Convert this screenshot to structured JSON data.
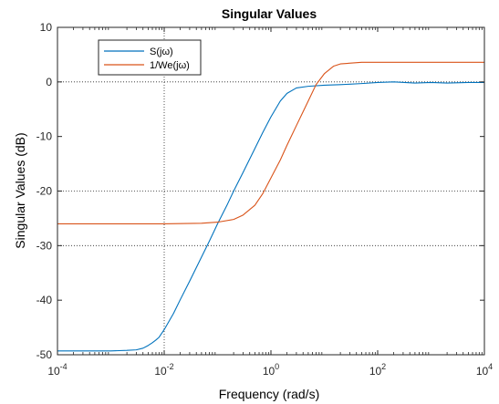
{
  "chart_data": {
    "type": "line",
    "title": "Singular Values",
    "xlabel": "Frequency (rad/s)",
    "ylabel": "Singular Values (dB)",
    "xscale": "log",
    "xlim": [
      0.0001,
      10000
    ],
    "ylim": [
      -50,
      10
    ],
    "xticks": [
      {
        "value": 0.0001,
        "base": "10",
        "exp": "-4"
      },
      {
        "value": 0.01,
        "base": "10",
        "exp": "-2"
      },
      {
        "value": 1,
        "base": "10",
        "exp": "0"
      },
      {
        "value": 100,
        "base": "10",
        "exp": "2"
      },
      {
        "value": 10000,
        "base": "10",
        "exp": "4"
      }
    ],
    "yticks": [
      "10",
      "0",
      "-10",
      "-20",
      "-30",
      "-40",
      "-50"
    ],
    "grid_lines": {
      "x": [
        0.01
      ],
      "y": [
        0,
        -20,
        -30
      ]
    },
    "legend": {
      "placement": "top-left"
    },
    "series": [
      {
        "name": "S(jω)",
        "color": "#0072BD",
        "points": [
          [
            0.0001,
            -49.3
          ],
          [
            0.001,
            -49.3
          ],
          [
            0.002,
            -49.2
          ],
          [
            0.003,
            -49.1
          ],
          [
            0.004,
            -48.8
          ],
          [
            0.005,
            -48.3
          ],
          [
            0.006,
            -47.8
          ],
          [
            0.007,
            -47.3
          ],
          [
            0.008,
            -46.8
          ],
          [
            0.01,
            -45.4
          ],
          [
            0.015,
            -42.4
          ],
          [
            0.02,
            -39.9
          ],
          [
            0.03,
            -36.5
          ],
          [
            0.05,
            -32.1
          ],
          [
            0.07,
            -29.2
          ],
          [
            0.1,
            -26.0
          ],
          [
            0.15,
            -22.6
          ],
          [
            0.2,
            -20.0
          ],
          [
            0.3,
            -16.6
          ],
          [
            0.5,
            -12.2
          ],
          [
            0.7,
            -9.3
          ],
          [
            1.0,
            -6.4
          ],
          [
            1.5,
            -3.5
          ],
          [
            2.0,
            -2.1
          ],
          [
            3.0,
            -1.1
          ],
          [
            5.0,
            -0.8
          ],
          [
            10,
            -0.6
          ],
          [
            20,
            -0.5
          ],
          [
            50,
            -0.3
          ],
          [
            100,
            -0.1
          ],
          [
            200,
            0.0
          ],
          [
            500,
            -0.2
          ],
          [
            1000,
            -0.1
          ],
          [
            2000,
            -0.2
          ],
          [
            5000,
            -0.1
          ],
          [
            10000,
            -0.1
          ]
        ]
      },
      {
        "name": "1/We(jω)",
        "color": "#D95319",
        "points": [
          [
            0.0001,
            -26.0
          ],
          [
            0.001,
            -26.0
          ],
          [
            0.01,
            -26.0
          ],
          [
            0.05,
            -25.9
          ],
          [
            0.1,
            -25.7
          ],
          [
            0.2,
            -25.2
          ],
          [
            0.3,
            -24.4
          ],
          [
            0.5,
            -22.6
          ],
          [
            0.7,
            -20.5
          ],
          [
            1.0,
            -17.6
          ],
          [
            1.5,
            -14.3
          ],
          [
            2.0,
            -11.6
          ],
          [
            3.0,
            -8.0
          ],
          [
            5.0,
            -3.5
          ],
          [
            7.0,
            -0.5
          ],
          [
            10,
            1.5
          ],
          [
            15,
            2.9
          ],
          [
            20,
            3.3
          ],
          [
            50,
            3.6
          ],
          [
            100,
            3.6
          ],
          [
            1000,
            3.6
          ],
          [
            10000,
            3.6
          ]
        ]
      }
    ]
  }
}
